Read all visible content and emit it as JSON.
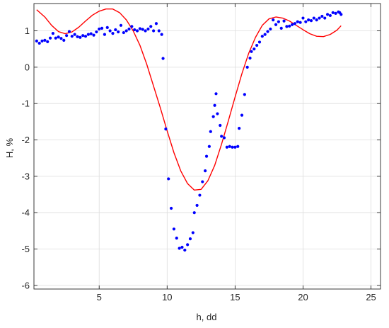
{
  "chart_data": {
    "type": "scatter",
    "title": "",
    "xlabel": "h, dd",
    "ylabel": "H, %",
    "xlim": [
      0.2,
      25.7
    ],
    "ylim": [
      -6.1,
      1.75
    ],
    "xticks": [
      5,
      10,
      15,
      20,
      25
    ],
    "yticks": [
      -6,
      -5,
      -4,
      -3,
      -2,
      -1,
      0,
      1
    ],
    "xtick_labels": [
      "5",
      "10",
      "15",
      "20",
      "25"
    ],
    "ytick_labels": [
      "-6",
      "-5",
      "-4",
      "-3",
      "-2",
      "-1",
      "0",
      "1"
    ],
    "grid": true,
    "series": [
      {
        "type": "scatter",
        "color": "#0000ff",
        "points": [
          [
            0.4,
            0.72
          ],
          [
            0.6,
            0.66
          ],
          [
            0.8,
            0.72
          ],
          [
            1.0,
            0.74
          ],
          [
            1.2,
            0.7
          ],
          [
            1.4,
            0.8
          ],
          [
            1.6,
            0.93
          ],
          [
            1.8,
            0.8
          ],
          [
            2.0,
            0.83
          ],
          [
            2.2,
            0.79
          ],
          [
            2.4,
            0.74
          ],
          [
            2.6,
            0.87
          ],
          [
            2.8,
            0.98
          ],
          [
            3.0,
            0.85
          ],
          [
            3.2,
            0.9
          ],
          [
            3.4,
            0.84
          ],
          [
            3.6,
            0.82
          ],
          [
            3.8,
            0.87
          ],
          [
            4.0,
            0.85
          ],
          [
            4.2,
            0.9
          ],
          [
            4.4,
            0.92
          ],
          [
            4.6,
            0.88
          ],
          [
            4.8,
            0.97
          ],
          [
            5.0,
            1.05
          ],
          [
            5.2,
            1.07
          ],
          [
            5.4,
            0.9
          ],
          [
            5.6,
            1.09
          ],
          [
            5.8,
            1.0
          ],
          [
            6.0,
            0.93
          ],
          [
            6.2,
            1.03
          ],
          [
            6.4,
            0.97
          ],
          [
            6.6,
            1.15
          ],
          [
            6.8,
            0.95
          ],
          [
            7.0,
            1.0
          ],
          [
            7.2,
            1.05
          ],
          [
            7.4,
            1.12
          ],
          [
            7.6,
            1.03
          ],
          [
            7.8,
            1.0
          ],
          [
            8.0,
            1.06
          ],
          [
            8.2,
            1.04
          ],
          [
            8.4,
            1.0
          ],
          [
            8.6,
            1.05
          ],
          [
            8.8,
            1.12
          ],
          [
            9.0,
            1.0
          ],
          [
            9.2,
            1.2
          ],
          [
            9.4,
            1.0
          ],
          [
            9.6,
            0.9
          ],
          [
            9.7,
            0.24
          ],
          [
            9.9,
            -1.7
          ],
          [
            10.1,
            -3.07
          ],
          [
            10.3,
            -3.88
          ],
          [
            10.5,
            -4.45
          ],
          [
            10.7,
            -4.7
          ],
          [
            10.9,
            -4.98
          ],
          [
            11.1,
            -4.95
          ],
          [
            11.3,
            -5.03
          ],
          [
            11.5,
            -4.88
          ],
          [
            11.7,
            -4.72
          ],
          [
            11.9,
            -4.55
          ],
          [
            12.0,
            -4.0
          ],
          [
            12.2,
            -3.8
          ],
          [
            12.4,
            -3.52
          ],
          [
            12.6,
            -3.15
          ],
          [
            12.8,
            -2.85
          ],
          [
            12.9,
            -2.45
          ],
          [
            13.1,
            -2.18
          ],
          [
            13.2,
            -1.77
          ],
          [
            13.4,
            -1.36
          ],
          [
            13.5,
            -1.05
          ],
          [
            13.6,
            -0.73
          ],
          [
            13.7,
            -1.28
          ],
          [
            13.9,
            -1.6
          ],
          [
            14.0,
            -1.9
          ],
          [
            14.2,
            -1.94
          ],
          [
            14.4,
            -2.2
          ],
          [
            14.6,
            -2.18
          ],
          [
            14.8,
            -2.2
          ],
          [
            15.0,
            -2.2
          ],
          [
            15.2,
            -2.18
          ],
          [
            15.3,
            -1.68
          ],
          [
            15.5,
            -1.32
          ],
          [
            15.7,
            -0.75
          ],
          [
            15.9,
            0.0
          ],
          [
            16.1,
            0.25
          ],
          [
            16.2,
            0.43
          ],
          [
            16.4,
            0.5
          ],
          [
            16.6,
            0.6
          ],
          [
            16.8,
            0.69
          ],
          [
            17.0,
            0.85
          ],
          [
            17.2,
            0.9
          ],
          [
            17.4,
            0.98
          ],
          [
            17.6,
            1.05
          ],
          [
            17.8,
            1.3
          ],
          [
            18.0,
            1.17
          ],
          [
            18.2,
            1.25
          ],
          [
            18.4,
            1.07
          ],
          [
            18.6,
            1.27
          ],
          [
            18.8,
            1.12
          ],
          [
            19.0,
            1.13
          ],
          [
            19.2,
            1.17
          ],
          [
            19.4,
            1.2
          ],
          [
            19.6,
            1.25
          ],
          [
            19.8,
            1.23
          ],
          [
            20.0,
            1.35
          ],
          [
            20.2,
            1.25
          ],
          [
            20.4,
            1.3
          ],
          [
            20.6,
            1.28
          ],
          [
            20.8,
            1.35
          ],
          [
            21.0,
            1.3
          ],
          [
            21.2,
            1.35
          ],
          [
            21.4,
            1.4
          ],
          [
            21.6,
            1.35
          ],
          [
            21.8,
            1.45
          ],
          [
            22.0,
            1.42
          ],
          [
            22.2,
            1.5
          ],
          [
            22.4,
            1.48
          ],
          [
            22.6,
            1.52
          ],
          [
            22.7,
            1.5
          ],
          [
            22.8,
            1.45
          ]
        ]
      },
      {
        "type": "line",
        "color": "#ff0000",
        "points": [
          [
            0.4,
            1.58
          ],
          [
            1.0,
            1.38
          ],
          [
            1.5,
            1.15
          ],
          [
            2.0,
            0.98
          ],
          [
            2.5,
            0.92
          ],
          [
            3.0,
            0.97
          ],
          [
            3.5,
            1.1
          ],
          [
            4.0,
            1.27
          ],
          [
            4.5,
            1.43
          ],
          [
            5.0,
            1.54
          ],
          [
            5.5,
            1.6
          ],
          [
            6.0,
            1.6
          ],
          [
            6.5,
            1.5
          ],
          [
            7.0,
            1.3
          ],
          [
            7.5,
            1.0
          ],
          [
            8.0,
            0.6
          ],
          [
            8.5,
            0.08
          ],
          [
            9.0,
            -0.52
          ],
          [
            9.5,
            -1.12
          ],
          [
            10.0,
            -1.75
          ],
          [
            10.5,
            -2.35
          ],
          [
            11.0,
            -2.85
          ],
          [
            11.5,
            -3.2
          ],
          [
            12.0,
            -3.38
          ],
          [
            12.5,
            -3.36
          ],
          [
            13.0,
            -3.12
          ],
          [
            13.5,
            -2.7
          ],
          [
            14.0,
            -2.12
          ],
          [
            14.5,
            -1.48
          ],
          [
            15.0,
            -0.82
          ],
          [
            15.5,
            -0.18
          ],
          [
            16.0,
            0.38
          ],
          [
            16.5,
            0.82
          ],
          [
            17.0,
            1.15
          ],
          [
            17.5,
            1.33
          ],
          [
            18.0,
            1.38
          ],
          [
            18.5,
            1.35
          ],
          [
            19.0,
            1.27
          ],
          [
            19.5,
            1.15
          ],
          [
            20.0,
            1.03
          ],
          [
            20.5,
            0.92
          ],
          [
            21.0,
            0.85
          ],
          [
            21.5,
            0.84
          ],
          [
            22.0,
            0.9
          ],
          [
            22.5,
            1.02
          ],
          [
            22.8,
            1.14
          ]
        ]
      }
    ]
  }
}
